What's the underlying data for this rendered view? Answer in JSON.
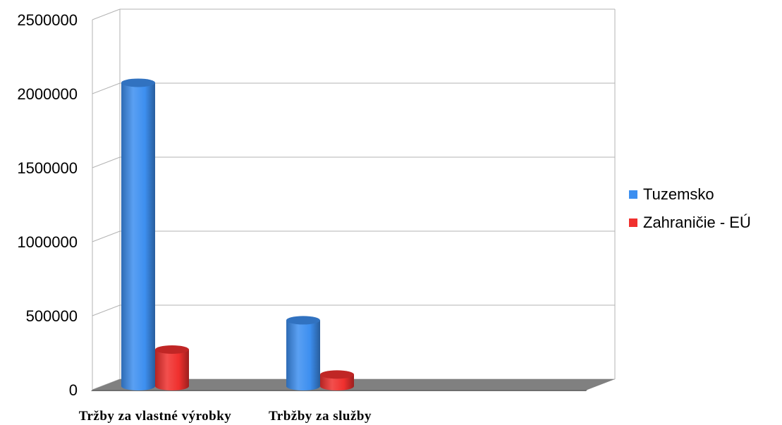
{
  "chart_data": {
    "type": "bar",
    "style": "3d-cylinder",
    "title": "",
    "xlabel": "",
    "ylabel": "",
    "categories": [
      "Tržby za vlastné výrobky",
      "Trbžby za služby",
      ""
    ],
    "series": [
      {
        "name": "Tuzemsko",
        "color": "#3d8ff0",
        "values": [
          2070000,
          450000,
          0
        ]
      },
      {
        "name": "Zahraničie - EÚ",
        "color": "#f0302e",
        "values": [
          250000,
          80000,
          0
        ]
      }
    ],
    "ylim": [
      0,
      2500000
    ],
    "yticks": [
      0,
      500000,
      1000000,
      1500000,
      2000000,
      2500000
    ],
    "grid": true,
    "legend_position": "right",
    "floor_color": "#808080"
  }
}
